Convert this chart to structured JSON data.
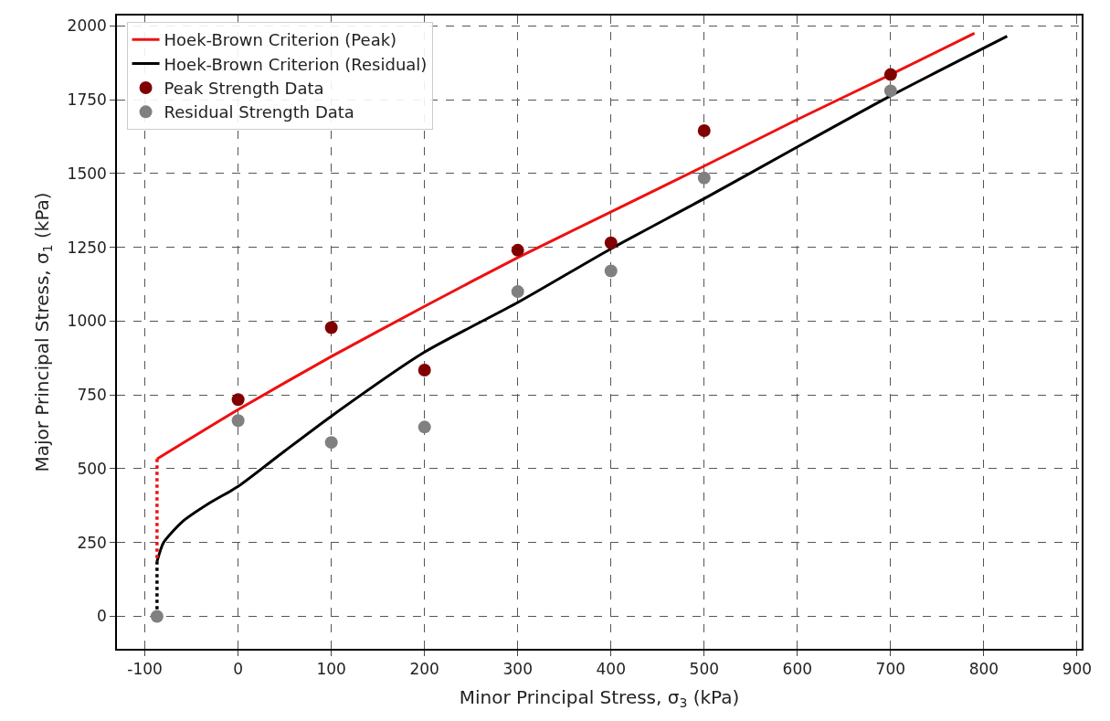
{
  "chart_data": {
    "type": "scatter",
    "xlabel": "Minor Principal Stress, σ$_{3}$ (kPa)",
    "ylabel": "Major Principal Stress, σ$_{1}$ (kPa)",
    "xlim": [
      -130,
      905
    ],
    "ylim": [
      -110,
      2035
    ],
    "xticks": [
      -100,
      0,
      100,
      200,
      300,
      400,
      500,
      600,
      700,
      800,
      900
    ],
    "yticks": [
      0,
      250,
      500,
      750,
      1000,
      1250,
      1500,
      1750,
      2000
    ],
    "grid": true,
    "legend": "top left",
    "series": [
      {
        "name": "Hoek-Brown Criterion (Peak)",
        "type": "line",
        "color": "#ee1111",
        "marker": "none",
        "line_style": "solid",
        "x": [
          -87,
          0,
          100,
          200,
          300,
          400,
          500,
          600,
          700,
          790
        ],
        "values": [
          533,
          700,
          880,
          1050,
          1215,
          1370,
          1525,
          1683,
          1835,
          1975
        ]
      },
      {
        "name": "Hoek-Brown Criterion (Residual)",
        "type": "line",
        "color": "#000000",
        "marker": "none",
        "line_style": "solid",
        "x": [
          -87,
          -80,
          -60,
          -30,
          0,
          50,
          100,
          200,
          300,
          400,
          500,
          600,
          700,
          825
        ],
        "values": [
          186,
          250,
          320,
          385,
          440,
          560,
          678,
          895,
          1063,
          1245,
          1415,
          1590,
          1763,
          1965
        ]
      },
      {
        "type": "line",
        "color": "#ee1111",
        "marker": "none",
        "line_style": "dotted",
        "x": [
          -87,
          -87
        ],
        "values": [
          533,
          186
        ]
      },
      {
        "type": "line",
        "color": "#000000",
        "marker": "none",
        "line_style": "dotted",
        "x": [
          -87,
          -87
        ],
        "values": [
          186,
          0
        ]
      },
      {
        "name": "Peak Strength Data",
        "color": "#800000",
        "marker": "circle",
        "x": [
          0,
          100,
          200,
          300,
          400,
          500,
          700
        ],
        "values": [
          734,
          978,
          834,
          1240,
          1265,
          1645,
          1835
        ]
      },
      {
        "name": "Residual Strength Data",
        "color": "#808080",
        "marker": "circle",
        "x": [
          -87,
          0,
          100,
          200,
          300,
          400,
          500,
          700
        ],
        "values": [
          0,
          663,
          589,
          641,
          1100,
          1170,
          1485,
          1780
        ]
      }
    ]
  }
}
